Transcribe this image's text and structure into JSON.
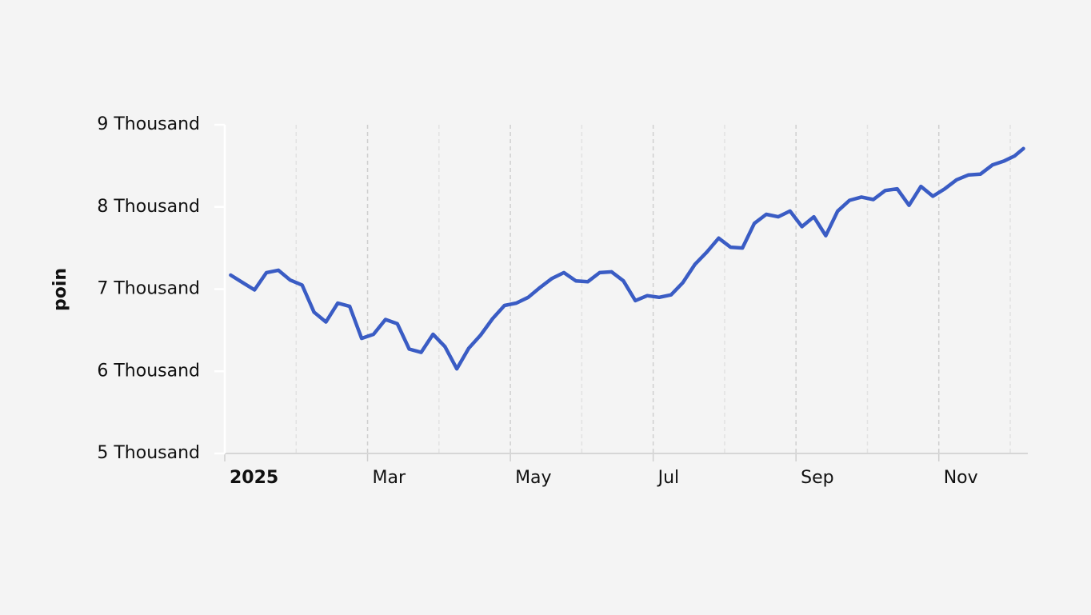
{
  "chart_data": {
    "type": "line",
    "y_label": "poin",
    "color": "#3a5cc4",
    "x": [
      "2025-01",
      "2025-01",
      "2025-01",
      "2025-01",
      "2025-01",
      "2025-01",
      "2025-02",
      "2025-02",
      "2025-02",
      "2025-02",
      "2025-02",
      "2025-02",
      "2025-03",
      "2025-03",
      "2025-03",
      "2025-03",
      "2025-03",
      "2025-03",
      "2025-04",
      "2025-04",
      "2025-04",
      "2025-04",
      "2025-04",
      "2025-04",
      "2025-05",
      "2025-05",
      "2025-05",
      "2025-05",
      "2025-05",
      "2025-05",
      "2025-06",
      "2025-06",
      "2025-06",
      "2025-06",
      "2025-06",
      "2025-06",
      "2025-07",
      "2025-07",
      "2025-07",
      "2025-07",
      "2025-07",
      "2025-07",
      "2025-08",
      "2025-08",
      "2025-08",
      "2025-08",
      "2025-08",
      "2025-08",
      "2025-09",
      "2025-09",
      "2025-09",
      "2025-09",
      "2025-09",
      "2025-09",
      "2025-10",
      "2025-10",
      "2025-10",
      "2025-10",
      "2025-10",
      "2025-10",
      "2025-11",
      "2025-11",
      "2025-11",
      "2025-11",
      "2025-11",
      "2025-11",
      "2025-12",
      "2025-12"
    ],
    "values": [
      7170,
      7080,
      6990,
      7200,
      7230,
      7110,
      7050,
      6720,
      6600,
      6830,
      6790,
      6400,
      6450,
      6630,
      6580,
      6270,
      6230,
      6450,
      6300,
      6030,
      6280,
      6440,
      6640,
      6800,
      6830,
      6900,
      7020,
      7130,
      7200,
      7100,
      7090,
      7200,
      7210,
      7100,
      6860,
      6920,
      6900,
      6930,
      7080,
      7300,
      7450,
      7620,
      7510,
      7500,
      7800,
      7910,
      7880,
      7950,
      7760,
      7880,
      7650,
      7950,
      8080,
      8120,
      8090,
      8200,
      8220,
      8020,
      8250,
      8130,
      8220,
      8330,
      8390,
      8400,
      8510,
      8560,
      8620,
      8710
    ],
    "xlim": [
      "2025-01",
      "2025-12"
    ],
    "xticks": [
      {
        "value": "2025-01",
        "label": "2025"
      },
      {
        "value": "2025-02",
        "label": null
      },
      {
        "value": "2025-03",
        "label": "Mar"
      },
      {
        "value": "2025-04",
        "label": null
      },
      {
        "value": "2025-05",
        "label": "May"
      },
      {
        "value": "2025-06",
        "label": null
      },
      {
        "value": "2025-07",
        "label": "Jul"
      },
      {
        "value": "2025-08",
        "label": null
      },
      {
        "value": "2025-09",
        "label": "Sep"
      },
      {
        "value": "2025-10",
        "label": null
      },
      {
        "value": "2025-11",
        "label": "Nov"
      },
      {
        "value": "2025-12",
        "label": null
      }
    ],
    "ylim": [
      5000,
      9000
    ],
    "yticks": [
      {
        "value": 5000,
        "label": "5 Thousand"
      },
      {
        "value": 6000,
        "label": "6 Thousand"
      },
      {
        "value": 7000,
        "label": "7 Thousand"
      },
      {
        "value": 8000,
        "label": "8 Thousand"
      },
      {
        "value": 9000,
        "label": "9 Thousand"
      }
    ],
    "grid": true
  }
}
